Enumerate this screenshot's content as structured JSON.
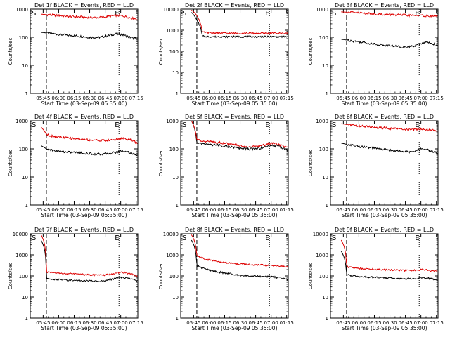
{
  "colors": {
    "events": "#000000",
    "lld": "#dd0000",
    "axis": "#000000"
  },
  "chart_data": [
    {
      "type": "line",
      "title": "Det 1f BLACK = Events, RED = LLD",
      "xlabel": "Start Time (03-Sep-09 05:35:00)",
      "ylabel": "Counts/sec",
      "x_ticks": [
        "05:45",
        "06:00",
        "06:15",
        "06:30",
        "06:45",
        "07:00",
        "07:15"
      ],
      "y_ticks": [
        "1",
        "10",
        "100",
        "1000"
      ],
      "y_scale": "log",
      "ylim": [
        1,
        1000
      ],
      "markers": {
        "start": "S",
        "end": "E"
      },
      "series": [
        {
          "name": "Events",
          "color": "black",
          "values": [
            150,
            142,
            135,
            128,
            122,
            118,
            115,
            110,
            105,
            100,
            98,
            100,
            108,
            120,
            132,
            125,
            110,
            95,
            85
          ]
        },
        {
          "name": "LLD",
          "color": "red",
          "values": [
            660,
            640,
            620,
            600,
            580,
            560,
            545,
            530,
            520,
            510,
            505,
            510,
            530,
            560,
            600,
            580,
            540,
            480,
            440
          ]
        }
      ]
    },
    {
      "type": "line",
      "title": "Det 2f BLACK = Events, RED = LLD",
      "xlabel": "Start Time (03-Sep-09 05:35:00)",
      "ylabel": "Counts/sec",
      "x_ticks": [
        "05:45",
        "06:00",
        "06:15",
        "06:30",
        "06:45",
        "07:00",
        "07:15"
      ],
      "y_ticks": [
        "1",
        "10",
        "100",
        "1000",
        "10000"
      ],
      "y_scale": "log",
      "ylim": [
        1,
        10000
      ],
      "markers": {
        "start": "S",
        "end": "E"
      },
      "series": [
        {
          "name": "Events",
          "color": "black",
          "values": [
            7000,
            3000,
            520,
            500,
            495,
            495,
            495,
            495,
            495,
            495,
            495,
            495,
            495,
            495,
            495,
            495,
            495,
            495,
            495
          ]
        },
        {
          "name": "LLD",
          "color": "red",
          "values": [
            9000,
            5000,
            800,
            760,
            740,
            730,
            725,
            720,
            720,
            720,
            720,
            720,
            720,
            720,
            720,
            720,
            720,
            720,
            720
          ]
        }
      ]
    },
    {
      "type": "line",
      "title": "Det 3f BLACK = Events, RED = LLD",
      "xlabel": "Start Time (03-Sep-09 05:35:00)",
      "ylabel": "Counts/sec",
      "x_ticks": [
        "05:45",
        "06:00",
        "06:15",
        "06:30",
        "06:45",
        "07:00",
        "07:15"
      ],
      "y_ticks": [
        "1",
        "10",
        "100",
        "1000"
      ],
      "y_scale": "log",
      "ylim": [
        1,
        1000
      ],
      "markers": {
        "start": "S",
        "end": "E"
      },
      "series": [
        {
          "name": "Events",
          "color": "black",
          "values": [
            85,
            80,
            75,
            70,
            66,
            62,
            58,
            55,
            52,
            50,
            48,
            46,
            45,
            46,
            50,
            62,
            68,
            60,
            50
          ]
        },
        {
          "name": "LLD",
          "color": "red",
          "values": [
            800,
            780,
            760,
            740,
            720,
            700,
            680,
            665,
            650,
            640,
            630,
            620,
            610,
            600,
            600,
            590,
            580,
            570,
            560
          ]
        }
      ]
    },
    {
      "type": "line",
      "title": "Det 4f BLACK = Events, RED = LLD",
      "xlabel": "Start Time (03-Sep-09 05:35:00)",
      "ylabel": "Counts/sec",
      "x_ticks": [
        "05:45",
        "06:00",
        "06:15",
        "06:30",
        "06:45",
        "07:00",
        "07:15"
      ],
      "y_ticks": [
        "1",
        "10",
        "100",
        "1000"
      ],
      "y_scale": "log",
      "ylim": [
        1,
        1000
      ],
      "markers": {
        "start": "S",
        "end": "E"
      },
      "series": [
        {
          "name": "Events",
          "color": "black",
          "values": [
            130,
            100,
            90,
            85,
            80,
            77,
            75,
            73,
            70,
            68,
            66,
            65,
            66,
            70,
            76,
            85,
            80,
            70,
            55
          ]
        },
        {
          "name": "LLD",
          "color": "red",
          "values": [
            600,
            330,
            290,
            270,
            255,
            245,
            235,
            225,
            218,
            210,
            205,
            200,
            198,
            205,
            220,
            240,
            225,
            200,
            160
          ]
        }
      ]
    },
    {
      "type": "line",
      "title": "Det 5f BLACK = Events, RED = LLD",
      "xlabel": "Start Time (03-Sep-09 05:35:00)",
      "ylabel": "Counts/sec",
      "x_ticks": [
        "05:45",
        "06:00",
        "06:15",
        "06:30",
        "06:45",
        "07:00",
        "07:15"
      ],
      "y_ticks": [
        "1",
        "10",
        "100",
        "1000"
      ],
      "y_scale": "log",
      "ylim": [
        1,
        1000
      ],
      "markers": {
        "start": "S",
        "end": "E"
      },
      "series": [
        {
          "name": "Events",
          "color": "black",
          "values": [
            1000,
            160,
            150,
            145,
            140,
            135,
            128,
            120,
            112,
            105,
            100,
            98,
            100,
            108,
            120,
            135,
            125,
            110,
            90
          ]
        },
        {
          "name": "LLD",
          "color": "red",
          "values": [
            1000,
            210,
            195,
            185,
            178,
            170,
            160,
            150,
            140,
            130,
            122,
            118,
            120,
            130,
            145,
            160,
            150,
            130,
            110
          ]
        }
      ]
    },
    {
      "type": "line",
      "title": "Det 6f BLACK = Events, RED = LLD",
      "xlabel": "Start Time (03-Sep-09 05:35:00)",
      "ylabel": "Counts/sec",
      "x_ticks": [
        "05:45",
        "06:00",
        "06:15",
        "06:30",
        "06:45",
        "07:00",
        "07:15"
      ],
      "y_ticks": [
        "1",
        "10",
        "100",
        "1000"
      ],
      "y_scale": "log",
      "ylim": [
        1,
        1000
      ],
      "markers": {
        "start": "S",
        "end": "E"
      },
      "series": [
        {
          "name": "Events",
          "color": "black",
          "values": [
            160,
            145,
            135,
            125,
            118,
            112,
            106,
            100,
            95,
            90,
            86,
            82,
            78,
            76,
            85,
            100,
            95,
            80,
            70
          ]
        },
        {
          "name": "LLD",
          "color": "red",
          "values": [
            780,
            740,
            700,
            670,
            640,
            615,
            595,
            575,
            560,
            545,
            530,
            515,
            500,
            490,
            495,
            500,
            480,
            460,
            440
          ]
        }
      ]
    },
    {
      "type": "line",
      "title": "Det 7f BLACK = Events, RED = LLD",
      "xlabel": "Start Time (03-Sep-09 05:35:00)",
      "ylabel": "Counts/sec",
      "x_ticks": [
        "05:45",
        "06:00",
        "06:15",
        "06:30",
        "06:45",
        "07:00",
        "07:15"
      ],
      "y_ticks": [
        "1",
        "10",
        "100",
        "1000",
        "10000"
      ],
      "y_scale": "log",
      "ylim": [
        1,
        10000
      ],
      "markers": {
        "start": "S",
        "end": "E"
      },
      "series": [
        {
          "name": "Events",
          "color": "black",
          "values": [
            5000,
            75,
            70,
            68,
            66,
            64,
            63,
            62,
            60,
            58,
            57,
            56,
            60,
            68,
            78,
            85,
            80,
            70,
            55
          ]
        },
        {
          "name": "LLD",
          "color": "red",
          "values": [
            9000,
            150,
            140,
            135,
            130,
            128,
            125,
            122,
            118,
            115,
            110,
            108,
            110,
            120,
            135,
            150,
            140,
            120,
            100
          ]
        }
      ]
    },
    {
      "type": "line",
      "title": "Det 8f BLACK = Events, RED = LLD",
      "xlabel": "Start Time (03-Sep-09 05:35:00)",
      "ylabel": "Counts/sec",
      "x_ticks": [
        "05:45",
        "06:00",
        "06:15",
        "06:30",
        "06:45",
        "07:00",
        "07:15"
      ],
      "y_ticks": [
        "1",
        "10",
        "100",
        "1000",
        "10000"
      ],
      "y_scale": "log",
      "ylim": [
        1,
        10000
      ],
      "markers": {
        "start": "S",
        "end": "E"
      },
      "series": [
        {
          "name": "Events",
          "color": "black",
          "values": [
            5000,
            300,
            240,
            200,
            175,
            155,
            140,
            128,
            118,
            110,
            105,
            100,
            98,
            96,
            94,
            90,
            85,
            78,
            65
          ]
        },
        {
          "name": "LLD",
          "color": "red",
          "values": [
            9000,
            900,
            700,
            600,
            530,
            480,
            440,
            410,
            385,
            365,
            350,
            340,
            335,
            330,
            320,
            310,
            300,
            285,
            260
          ]
        }
      ]
    },
    {
      "type": "line",
      "title": "Det 9f BLACK = Events, RED = LLD",
      "xlabel": "Start Time (03-Sep-09 05:35:00)",
      "ylabel": "Counts/sec",
      "x_ticks": [
        "05:45",
        "06:00",
        "06:15",
        "06:30",
        "06:45",
        "07:00",
        "07:15"
      ],
      "y_ticks": [
        "1",
        "10",
        "100",
        "1000",
        "10000"
      ],
      "y_scale": "log",
      "ylim": [
        1,
        10000
      ],
      "markers": {
        "start": "S",
        "end": "E"
      },
      "series": [
        {
          "name": "Events",
          "color": "black",
          "values": [
            1500,
            115,
            100,
            95,
            90,
            88,
            86,
            84,
            82,
            80,
            78,
            76,
            74,
            72,
            75,
            85,
            80,
            72,
            65
          ]
        },
        {
          "name": "LLD",
          "color": "red",
          "values": [
            5000,
            280,
            250,
            235,
            225,
            218,
            212,
            206,
            200,
            195,
            190,
            186,
            182,
            180,
            185,
            200,
            190,
            175,
            165
          ]
        }
      ]
    }
  ]
}
